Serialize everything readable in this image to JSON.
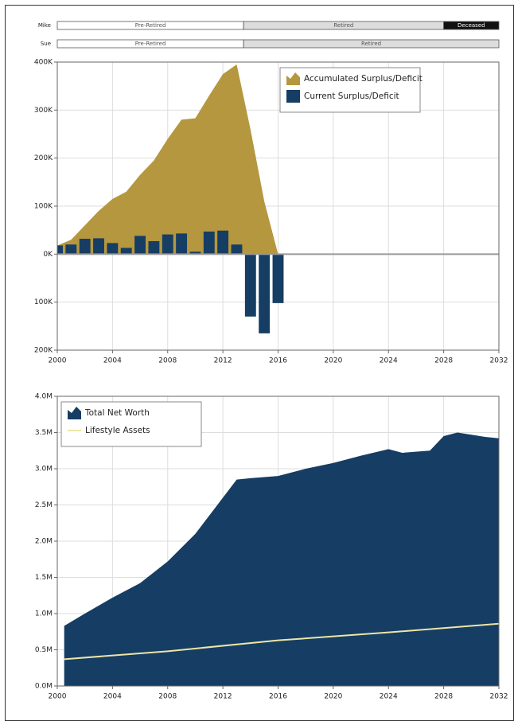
{
  "timeline": [
    {
      "name": "Mike",
      "phases": [
        {
          "label": "Pre-Retired",
          "start": 2000,
          "end": 2013.5,
          "color": "#ffffff",
          "text_color": "#555555"
        },
        {
          "label": "Retired",
          "start": 2013.5,
          "end": 2028,
          "color": "#dddddd",
          "text_color": "#555555"
        },
        {
          "label": "Deceased",
          "start": 2028,
          "end": 2032,
          "color": "#111111",
          "text_color": "#ffffff"
        }
      ]
    },
    {
      "name": "Sue",
      "phases": [
        {
          "label": "Pre-Retired",
          "start": 2000,
          "end": 2013.5,
          "color": "#ffffff",
          "text_color": "#555555"
        },
        {
          "label": "Retired",
          "start": 2013.5,
          "end": 2032,
          "color": "#dddddd",
          "text_color": "#555555"
        }
      ]
    }
  ],
  "chart_data": [
    {
      "type": "combo",
      "xlim": [
        2000,
        2032
      ],
      "xticks": [
        2000,
        2004,
        2008,
        2012,
        2016,
        2020,
        2024,
        2028,
        2032
      ],
      "ylim": [
        -200,
        400
      ],
      "yticks": [
        {
          "value": -200,
          "label": "200K"
        },
        {
          "value": -100,
          "label": "100K"
        },
        {
          "value": 0,
          "label": "0K"
        },
        {
          "value": 100,
          "label": "100K"
        },
        {
          "value": 200,
          "label": "200K"
        },
        {
          "value": 300,
          "label": "300K"
        },
        {
          "value": 400,
          "label": "400K"
        }
      ],
      "grid": true,
      "legend": "top-right",
      "series": [
        {
          "name": "Accumulated Surplus/Deficit",
          "type": "area",
          "color": "#b5973f",
          "x": [
            2000,
            2001,
            2002,
            2003,
            2004,
            2005,
            2006,
            2007,
            2008,
            2009,
            2010,
            2011,
            2012,
            2013,
            2014,
            2015,
            2016
          ],
          "values": [
            18,
            30,
            60,
            90,
            115,
            130,
            165,
            195,
            240,
            280,
            283,
            330,
            375,
            395,
            260,
            110,
            0
          ]
        },
        {
          "name": "Current Surplus/Deficit",
          "type": "bar",
          "color": "#163d63",
          "x": [
            2000,
            2001,
            2002,
            2003,
            2004,
            2005,
            2006,
            2007,
            2008,
            2009,
            2010,
            2011,
            2012,
            2013,
            2014,
            2015,
            2016
          ],
          "values": [
            18,
            20,
            32,
            33,
            23,
            13,
            38,
            27,
            41,
            43,
            5,
            47,
            49,
            20,
            -130,
            -165,
            -102
          ]
        }
      ]
    },
    {
      "type": "area",
      "xlim": [
        2000,
        2032
      ],
      "xticks": [
        2000,
        2004,
        2008,
        2012,
        2016,
        2020,
        2024,
        2028,
        2032
      ],
      "ylim": [
        0,
        4
      ],
      "yticks": [
        {
          "value": 0,
          "label": "0.0M"
        },
        {
          "value": 0.5,
          "label": "0.5M"
        },
        {
          "value": 1,
          "label": "1.0M"
        },
        {
          "value": 1.5,
          "label": "1.5M"
        },
        {
          "value": 2,
          "label": "2.0M"
        },
        {
          "value": 2.5,
          "label": "2.5M"
        },
        {
          "value": 3,
          "label": "3.0M"
        },
        {
          "value": 3.5,
          "label": "3.5M"
        },
        {
          "value": 4,
          "label": "4.0M"
        }
      ],
      "grid": true,
      "legend": "top-left",
      "series": [
        {
          "name": "Total Net Worth",
          "type": "area",
          "color": "#163d63",
          "x": [
            2000.5,
            2002,
            2004,
            2006,
            2008,
            2010,
            2011,
            2012,
            2013,
            2014,
            2016,
            2018,
            2020,
            2022,
            2024,
            2025,
            2027,
            2028,
            2029,
            2030,
            2031,
            2032
          ],
          "values": [
            0.83,
            1.0,
            1.22,
            1.42,
            1.72,
            2.1,
            2.35,
            2.6,
            2.85,
            2.87,
            2.9,
            3.0,
            3.08,
            3.18,
            3.27,
            3.22,
            3.25,
            3.45,
            3.5,
            3.47,
            3.44,
            3.42
          ]
        },
        {
          "name": "Lifestyle Assets",
          "type": "line",
          "color": "#ece6a6",
          "x": [
            2000.5,
            2008,
            2016,
            2024,
            2032
          ],
          "values": [
            0.37,
            0.48,
            0.63,
            0.74,
            0.86
          ]
        }
      ]
    }
  ]
}
